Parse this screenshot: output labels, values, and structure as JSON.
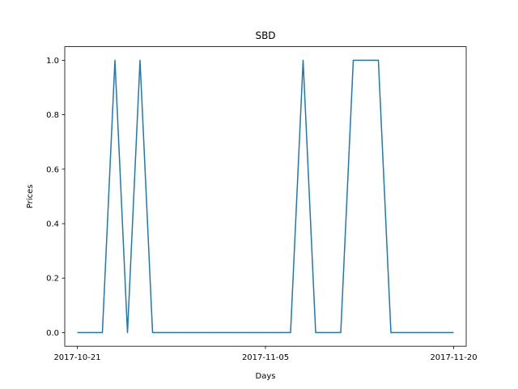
{
  "chart_data": {
    "type": "line",
    "title": "SBD",
    "xlabel": "Days",
    "ylabel": "Prices",
    "x": [
      "2017-10-21",
      "2017-10-22",
      "2017-10-23",
      "2017-10-24",
      "2017-10-25",
      "2017-10-26",
      "2017-10-27",
      "2017-10-28",
      "2017-10-29",
      "2017-10-30",
      "2017-10-31",
      "2017-11-01",
      "2017-11-02",
      "2017-11-03",
      "2017-11-04",
      "2017-11-05",
      "2017-11-06",
      "2017-11-07",
      "2017-11-08",
      "2017-11-09",
      "2017-11-10",
      "2017-11-11",
      "2017-11-12",
      "2017-11-13",
      "2017-11-14",
      "2017-11-15",
      "2017-11-16",
      "2017-11-17",
      "2017-11-18",
      "2017-11-19",
      "2017-11-20"
    ],
    "series": [
      {
        "values": [
          0,
          0,
          0,
          1,
          0,
          1,
          0,
          0,
          0,
          0,
          0,
          0,
          0,
          0,
          0,
          0,
          0,
          0,
          1,
          0,
          0,
          0,
          1,
          1,
          1,
          0,
          0,
          0,
          0,
          0,
          0
        ],
        "color": "#1f77b4"
      }
    ],
    "xticks": [
      "2017-10-21",
      "2017-11-05",
      "2017-11-20"
    ],
    "yticks": [
      "0.0",
      "0.2",
      "0.4",
      "0.6",
      "0.8",
      "1.0"
    ],
    "ylim": [
      -0.05,
      1.05
    ],
    "xlim": [
      "2017-10-20",
      "2017-11-21"
    ],
    "grid": false,
    "legend": "none"
  }
}
